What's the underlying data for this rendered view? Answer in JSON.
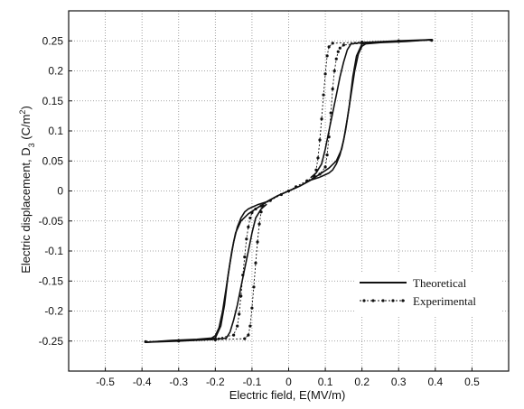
{
  "chart_data": {
    "type": "line",
    "xlabel": "Electric field, E(MV/m)",
    "ylabel_main": "Electric displacement, D",
    "ylabel_sub": "3",
    "ylabel_unit_pre": " (C/m",
    "ylabel_unit_sup": "2",
    "ylabel_unit_post": ")",
    "xlim": [
      -0.6,
      0.6
    ],
    "ylim": [
      -0.3,
      0.3
    ],
    "xticks": [
      -0.5,
      -0.4,
      -0.3,
      -0.2,
      -0.1,
      0,
      0.1,
      0.2,
      0.3,
      0.4,
      0.5
    ],
    "xtick_labels": [
      "-0.5",
      "-0.4",
      "-0.3",
      "-0.2",
      "-0.1",
      "0",
      "0.1",
      "0.2",
      "0.3",
      "0.4",
      "0.5"
    ],
    "yticks": [
      -0.25,
      -0.2,
      -0.15,
      -0.1,
      -0.05,
      0,
      0.05,
      0.1,
      0.15,
      0.2,
      0.25
    ],
    "ytick_labels": [
      "-0.25",
      "-0.2",
      "-0.15",
      "-0.1",
      "-0.05",
      "0",
      "0.05",
      "0.1",
      "0.15",
      "0.2",
      "0.25"
    ],
    "grid": true,
    "legend": {
      "placement": "lower-right",
      "entries": [
        "Theoretical",
        "Experimental"
      ]
    },
    "series": [
      {
        "name": "Theoretical",
        "style": "solid",
        "curves": [
          {
            "x": [
              -0.39,
              -0.3,
              -0.22,
              -0.2,
              -0.185,
              -0.175,
              -0.165,
              -0.155,
              -0.145,
              -0.13,
              -0.11,
              -0.085,
              -0.06,
              -0.03,
              0,
              0.03,
              0.06,
              0.085,
              0.1,
              0.11,
              0.12,
              0.13,
              0.14,
              0.15,
              0.16,
              0.17,
              0.18,
              0.19,
              0.2,
              0.21,
              0.25,
              0.32,
              0.39
            ],
            "y": [
              -0.252,
              -0.249,
              -0.247,
              -0.245,
              -0.225,
              -0.19,
              -0.14,
              -0.1,
              -0.07,
              -0.05,
              -0.038,
              -0.028,
              -0.018,
              -0.008,
              0,
              0.008,
              0.018,
              0.023,
              0.027,
              0.03,
              0.035,
              0.045,
              0.06,
              0.085,
              0.12,
              0.16,
              0.2,
              0.228,
              0.241,
              0.245,
              0.247,
              0.249,
              0.252
            ]
          },
          {
            "x": [
              0.39,
              0.3,
              0.22,
              0.2,
              0.185,
              0.175,
              0.165,
              0.155,
              0.145,
              0.13,
              0.11,
              0.085,
              0.06,
              0.03,
              0,
              -0.03,
              -0.06,
              -0.085,
              -0.1,
              -0.11,
              -0.12,
              -0.13,
              -0.14,
              -0.15,
              -0.16,
              -0.17,
              -0.18,
              -0.19,
              -0.2,
              -0.21,
              -0.25,
              -0.32,
              -0.39
            ],
            "y": [
              0.252,
              0.249,
              0.247,
              0.245,
              0.225,
              0.19,
              0.14,
              0.1,
              0.07,
              0.05,
              0.038,
              0.028,
              0.018,
              0.008,
              0,
              -0.008,
              -0.018,
              -0.023,
              -0.027,
              -0.03,
              -0.035,
              -0.045,
              -0.06,
              -0.085,
              -0.12,
              -0.16,
              -0.2,
              -0.228,
              -0.241,
              -0.245,
              -0.247,
              -0.249,
              -0.252
            ]
          },
          {
            "x": [
              0.39,
              0.3,
              0.2,
              0.17,
              0.16,
              0.15,
              0.14,
              0.13,
              0.12,
              0.11,
              0.1,
              0.09,
              0.075,
              0.06
            ],
            "y": [
              0.252,
              0.25,
              0.247,
              0.245,
              0.235,
              0.215,
              0.19,
              0.16,
              0.13,
              0.1,
              0.07,
              0.045,
              0.03,
              0.022
            ]
          },
          {
            "x": [
              -0.39,
              -0.3,
              -0.2,
              -0.17,
              -0.16,
              -0.15,
              -0.14,
              -0.13,
              -0.12,
              -0.11,
              -0.1,
              -0.09,
              -0.075,
              -0.06
            ],
            "y": [
              -0.252,
              -0.25,
              -0.247,
              -0.245,
              -0.235,
              -0.215,
              -0.19,
              -0.16,
              -0.13,
              -0.1,
              -0.07,
              -0.045,
              -0.03,
              -0.022
            ]
          }
        ]
      },
      {
        "name": "Experimental",
        "style": "dotted-markers",
        "curves": [
          {
            "x": [
              -0.39,
              -0.3,
              -0.2,
              -0.15,
              -0.14,
              -0.135,
              -0.13,
              -0.125,
              -0.12,
              -0.115,
              -0.11,
              -0.105,
              -0.1,
              -0.09,
              -0.075,
              -0.05,
              -0.02,
              0,
              0.02,
              0.05,
              0.07,
              0.085,
              0.1,
              0.105,
              0.11,
              0.115,
              0.12,
              0.125,
              0.13,
              0.135,
              0.14,
              0.15,
              0.2,
              0.3,
              0.39
            ],
            "y": [
              -0.251,
              -0.249,
              -0.246,
              -0.24,
              -0.225,
              -0.205,
              -0.175,
              -0.14,
              -0.11,
              -0.08,
              -0.06,
              -0.045,
              -0.036,
              -0.03,
              -0.025,
              -0.016,
              -0.006,
              0,
              0.007,
              0.017,
              0.023,
              0.028,
              0.04,
              0.06,
              0.09,
              0.13,
              0.17,
              0.2,
              0.22,
              0.232,
              0.238,
              0.243,
              0.246,
              0.249,
              0.251
            ]
          },
          {
            "x": [
              0.39,
              0.3,
              0.2,
              0.12,
              0.11,
              0.105,
              0.1,
              0.095,
              0.09,
              0.085,
              0.08,
              0.075,
              0.07
            ],
            "y": [
              0.251,
              0.25,
              0.248,
              0.246,
              0.24,
              0.225,
              0.195,
              0.16,
              0.12,
              0.085,
              0.055,
              0.035,
              0.025
            ]
          },
          {
            "x": [
              -0.39,
              -0.3,
              -0.2,
              -0.12,
              -0.11,
              -0.105,
              -0.1,
              -0.095,
              -0.09,
              -0.085,
              -0.08,
              -0.075,
              -0.07
            ],
            "y": [
              -0.251,
              -0.25,
              -0.248,
              -0.246,
              -0.24,
              -0.225,
              -0.195,
              -0.16,
              -0.12,
              -0.085,
              -0.055,
              -0.035,
              -0.025
            ]
          }
        ]
      }
    ]
  }
}
